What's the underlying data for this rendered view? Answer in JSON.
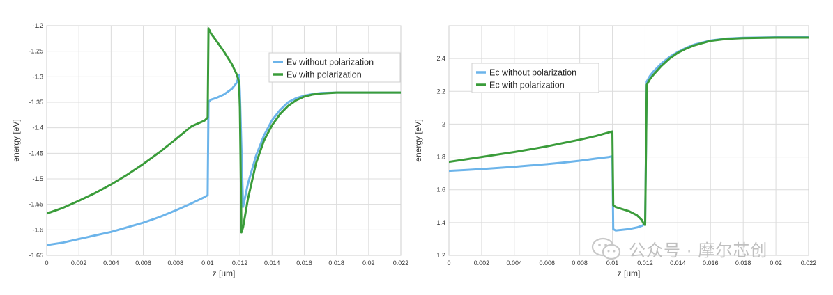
{
  "watermark": {
    "text": "公众号 · 摩尔芯创",
    "icon": "wechat-icon"
  },
  "chart_data": [
    {
      "type": "line",
      "xlabel": "z [um]",
      "ylabel": "energy [eV]",
      "xlim": [
        0,
        0.022
      ],
      "ylim": [
        -1.65,
        -1.2
      ],
      "x_ticks": [
        "0",
        "0.002",
        "0.004",
        "0.006",
        "0.008",
        "0.01",
        "0.012",
        "0.014",
        "0.016",
        "0.018",
        "0.02",
        "0.022"
      ],
      "y_ticks": [
        "-1.2",
        "-1.25",
        "-1.3",
        "-1.35",
        "-1.4",
        "-1.45",
        "-1.5",
        "-1.55",
        "-1.6",
        "-1.65"
      ],
      "grid": true,
      "legend_position": "top-right",
      "series": [
        {
          "name": "Ev without polarization",
          "color": "#6cb4ea",
          "x": [
            0,
            0.001,
            0.002,
            0.003,
            0.004,
            0.005,
            0.006,
            0.007,
            0.008,
            0.009,
            0.0098,
            0.01,
            0.01005,
            0.0102,
            0.0105,
            0.011,
            0.0115,
            0.0118,
            0.01195,
            0.012,
            0.0122,
            0.0125,
            0.013,
            0.0135,
            0.014,
            0.0145,
            0.015,
            0.0155,
            0.016,
            0.0165,
            0.017,
            0.018,
            0.02,
            0.022
          ],
          "y": [
            -1.63,
            -1.625,
            -1.618,
            -1.611,
            -1.604,
            -1.595,
            -1.586,
            -1.575,
            -1.562,
            -1.548,
            -1.536,
            -1.532,
            -1.35,
            -1.345,
            -1.342,
            -1.335,
            -1.324,
            -1.312,
            -1.297,
            -1.33,
            -1.555,
            -1.51,
            -1.455,
            -1.415,
            -1.385,
            -1.365,
            -1.35,
            -1.342,
            -1.337,
            -1.334,
            -1.332,
            -1.331,
            -1.331,
            -1.331
          ]
        },
        {
          "name": "Ev with polarization",
          "color": "#3a9c3a",
          "x": [
            0,
            0.001,
            0.002,
            0.003,
            0.004,
            0.005,
            0.006,
            0.007,
            0.008,
            0.009,
            0.0098,
            0.01,
            0.01005,
            0.0101,
            0.0102,
            0.0105,
            0.011,
            0.0115,
            0.0118,
            0.01195,
            0.012,
            0.0121,
            0.0122,
            0.0125,
            0.013,
            0.0135,
            0.014,
            0.0145,
            0.015,
            0.0155,
            0.016,
            0.0165,
            0.017,
            0.018,
            0.02,
            0.022
          ],
          "y": [
            -1.568,
            -1.557,
            -1.543,
            -1.528,
            -1.511,
            -1.492,
            -1.471,
            -1.448,
            -1.423,
            -1.397,
            -1.386,
            -1.38,
            -1.205,
            -1.208,
            -1.215,
            -1.228,
            -1.25,
            -1.275,
            -1.295,
            -1.31,
            -1.36,
            -1.605,
            -1.595,
            -1.54,
            -1.47,
            -1.425,
            -1.395,
            -1.373,
            -1.357,
            -1.346,
            -1.339,
            -1.335,
            -1.333,
            -1.331,
            -1.331,
            -1.331
          ]
        }
      ]
    },
    {
      "type": "line",
      "xlabel": "z [um]",
      "ylabel": "energy [eV]",
      "xlim": [
        0,
        0.022
      ],
      "ylim": [
        1.2,
        2.6
      ],
      "x_ticks": [
        "0",
        "0.002",
        "0.004",
        "0.006",
        "0.008",
        "0.01",
        "0.012",
        "0.014",
        "0.016",
        "0.018",
        "0.02",
        "0.022"
      ],
      "y_ticks": [
        "1.2",
        "1.4",
        "1.6",
        "1.8",
        "2",
        "2.2",
        "2.4"
      ],
      "grid": true,
      "legend_position": "top-left",
      "series": [
        {
          "name": "Ec without polarization",
          "color": "#6cb4ea",
          "x": [
            0,
            0.001,
            0.002,
            0.003,
            0.004,
            0.005,
            0.006,
            0.007,
            0.008,
            0.009,
            0.0098,
            0.01,
            0.01005,
            0.0102,
            0.0105,
            0.011,
            0.0115,
            0.0118,
            0.01195,
            0.012,
            0.0121,
            0.0123,
            0.0125,
            0.013,
            0.0135,
            0.014,
            0.0145,
            0.015,
            0.016,
            0.017,
            0.018,
            0.02,
            0.022
          ],
          "y": [
            1.715,
            1.72,
            1.726,
            1.733,
            1.74,
            1.748,
            1.756,
            1.766,
            1.777,
            1.79,
            1.8,
            1.805,
            1.36,
            1.352,
            1.355,
            1.36,
            1.37,
            1.38,
            1.39,
            1.395,
            2.26,
            2.295,
            2.32,
            2.37,
            2.41,
            2.44,
            2.465,
            2.485,
            2.51,
            2.522,
            2.527,
            2.53,
            2.53
          ]
        },
        {
          "name": "Ec with polarization",
          "color": "#3a9c3a",
          "x": [
            0,
            0.001,
            0.002,
            0.003,
            0.004,
            0.005,
            0.006,
            0.007,
            0.008,
            0.009,
            0.0098,
            0.01,
            0.01005,
            0.0102,
            0.0105,
            0.011,
            0.0115,
            0.0118,
            0.0119,
            0.012,
            0.0121,
            0.0123,
            0.0125,
            0.013,
            0.0135,
            0.014,
            0.0145,
            0.015,
            0.016,
            0.017,
            0.018,
            0.02,
            0.022
          ],
          "y": [
            1.77,
            1.785,
            1.8,
            1.815,
            1.83,
            1.847,
            1.865,
            1.885,
            1.905,
            1.928,
            1.95,
            1.955,
            1.505,
            1.495,
            1.485,
            1.47,
            1.445,
            1.415,
            1.395,
            1.385,
            2.24,
            2.275,
            2.3,
            2.355,
            2.4,
            2.435,
            2.46,
            2.48,
            2.508,
            2.52,
            2.525,
            2.528,
            2.528
          ]
        }
      ]
    }
  ]
}
